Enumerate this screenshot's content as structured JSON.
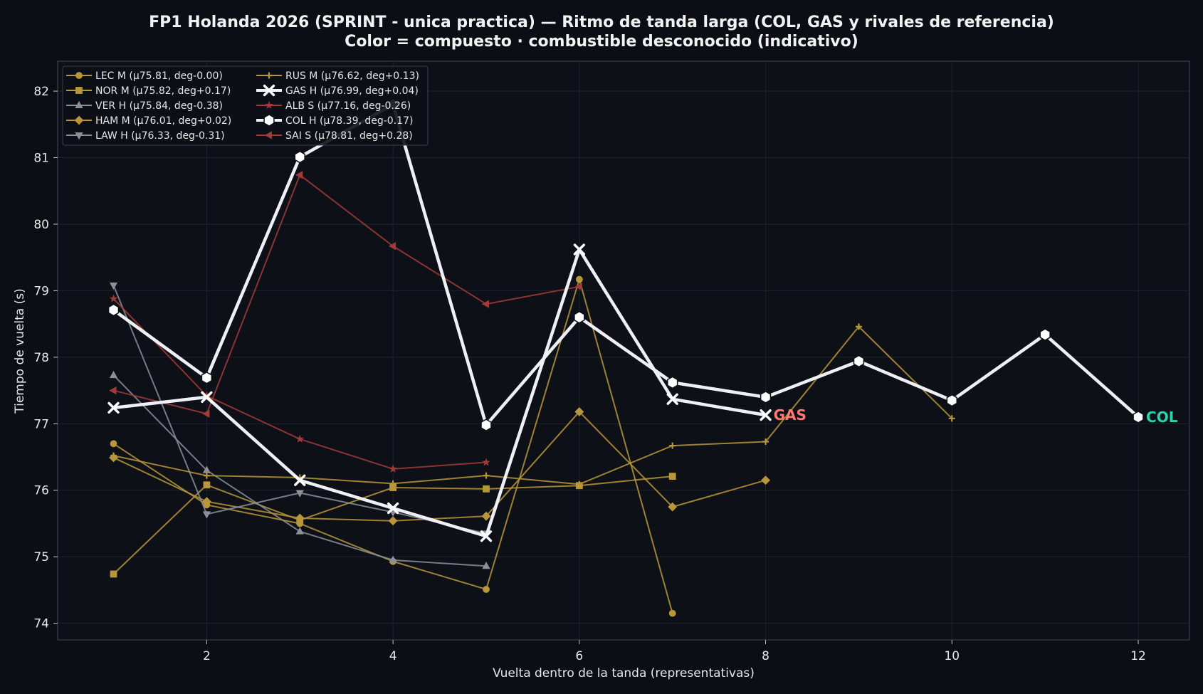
{
  "chart_data": {
    "type": "line",
    "title": "FP1 Holanda 2026 (SPRINT - unica practica) — Ritmo de tanda larga (COL, GAS y rivales de referencia)",
    "subtitle": "Color = compuesto · combustible desconocido (indicativo)",
    "xlabel": "Vuelta dentro de la tanda (representativas)",
    "ylabel": "Tiempo de vuelta (s)",
    "xlim": [
      0.4,
      12.55
    ],
    "ylim": [
      73.75,
      82.45
    ],
    "xticks": [
      2,
      4,
      6,
      8,
      10,
      12
    ],
    "yticks": [
      74,
      75,
      76,
      77,
      78,
      79,
      80,
      81,
      82
    ],
    "grid": true,
    "legend_position": "top-left",
    "series": [
      {
        "name": "LEC M (μ75.81, deg-0.00)",
        "color": "#b8963a",
        "marker": "circle",
        "x": [
          1,
          2,
          3,
          4,
          5,
          6,
          7
        ],
        "y": [
          76.7,
          75.78,
          75.5,
          74.93,
          74.51,
          79.17,
          74.15
        ]
      },
      {
        "name": "NOR M (μ75.82, deg+0.17)",
        "color": "#b8963a",
        "marker": "square",
        "x": [
          1,
          2,
          3,
          4,
          5,
          6,
          7
        ],
        "y": [
          74.74,
          76.08,
          75.55,
          76.04,
          76.02,
          76.07,
          76.21
        ]
      },
      {
        "name": "VER H (μ75.84, deg-0.38)",
        "color": "#8c8f99",
        "marker": "triangle-up",
        "x": [
          1,
          2,
          3,
          4,
          5
        ],
        "y": [
          77.73,
          76.3,
          75.38,
          74.95,
          74.86
        ]
      },
      {
        "name": "HAM M (μ76.01, deg+0.02)",
        "color": "#b8963a",
        "marker": "diamond",
        "x": [
          1,
          2,
          3,
          4,
          5,
          6,
          7,
          8
        ],
        "y": [
          76.49,
          75.83,
          75.58,
          75.54,
          75.61,
          77.18,
          75.75,
          76.15
        ]
      },
      {
        "name": "LAW H (μ76.33, deg-0.31)",
        "color": "#8c8f99",
        "marker": "triangle-down",
        "x": [
          1,
          2,
          3,
          4,
          5
        ],
        "y": [
          79.08,
          75.64,
          75.96,
          75.67,
          75.35
        ]
      },
      {
        "name": "RUS M (μ76.62, deg+0.13)",
        "color": "#b8963a",
        "marker": "plus",
        "x": [
          1,
          2,
          3,
          4,
          5,
          6,
          7,
          8,
          9,
          10
        ],
        "y": [
          76.52,
          76.22,
          76.19,
          76.1,
          76.22,
          76.09,
          76.67,
          76.73,
          78.46,
          77.08
        ]
      },
      {
        "name": "GAS H (μ76.99, deg+0.04)",
        "color": "#eef0f6",
        "marker": "x",
        "emphasis": true,
        "x": [
          1,
          2,
          3,
          4,
          5,
          6,
          7,
          8
        ],
        "y": [
          77.24,
          77.4,
          76.15,
          75.73,
          75.31,
          79.62,
          77.37,
          77.13
        ]
      },
      {
        "name": "ALB S (μ77.16, deg-0.26)",
        "color": "#a33a3a",
        "marker": "star",
        "x": [
          1,
          2,
          3,
          4,
          5
        ],
        "y": [
          78.88,
          77.42,
          76.77,
          76.32,
          76.42
        ]
      },
      {
        "name": "COL H (μ78.39, deg-0.17)",
        "color": "#eef0f6",
        "marker": "hexagon",
        "emphasis": true,
        "x": [
          1,
          2,
          3,
          4,
          5,
          6,
          7,
          8,
          9,
          10,
          11,
          12
        ],
        "y": [
          78.71,
          77.69,
          81.01,
          81.8,
          76.98,
          78.6,
          77.62,
          77.4,
          77.94,
          77.35,
          78.34,
          77.1
        ]
      },
      {
        "name": "SAI S (μ78.81, deg+0.28)",
        "color": "#a33a3a",
        "marker": "triangle-left",
        "x": [
          1,
          2,
          3,
          4,
          5,
          6
        ],
        "y": [
          77.5,
          77.15,
          80.74,
          79.67,
          78.8,
          79.06
        ]
      }
    ],
    "annotations": [
      {
        "text": "GAS",
        "x": 8,
        "y": 77.13,
        "color": "#ff7b72"
      },
      {
        "text": "COL",
        "x": 12,
        "y": 77.1,
        "color": "#2bd4a4"
      }
    ]
  }
}
